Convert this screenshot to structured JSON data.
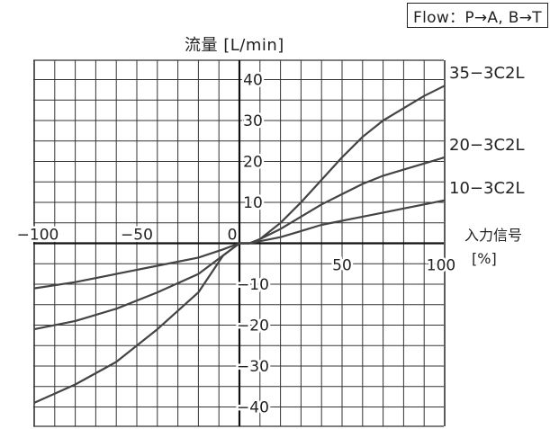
{
  "flow_note": "Flow：P→A, B→T",
  "chart_data": {
    "type": "line",
    "ylabel": "流量 [L/min]",
    "xlabel": "入力信号",
    "xlabel_unit": "[%]",
    "xlim": [
      -100,
      100
    ],
    "ylim": [
      -50,
      50
    ],
    "grid": true,
    "x_ticks": [
      {
        "value": -100,
        "label": "−100"
      },
      {
        "value": -50,
        "label": "−50"
      },
      {
        "value": 0,
        "label": "0"
      },
      {
        "value": 50,
        "label": "50"
      },
      {
        "value": 100,
        "label": "100"
      }
    ],
    "y_ticks": [
      {
        "value": 40,
        "label": "40"
      },
      {
        "value": 30,
        "label": "30"
      },
      {
        "value": 20,
        "label": "20"
      },
      {
        "value": 10,
        "label": "10"
      },
      {
        "value": -10,
        "label": "−10"
      },
      {
        "value": -20,
        "label": "−20"
      },
      {
        "value": -30,
        "label": "−30"
      },
      {
        "value": -40,
        "label": "−40"
      }
    ],
    "series": [
      {
        "name": "35−3C2L",
        "x": [
          -100,
          -80,
          -60,
          -40,
          -20,
          -8,
          0,
          5,
          10,
          20,
          30,
          40,
          50,
          60,
          70,
          80,
          90,
          100
        ],
        "y": [
          -39,
          -34.5,
          -29,
          -21,
          -12,
          -3,
          0,
          0,
          1,
          5,
          10,
          15.5,
          21,
          26,
          30,
          33,
          36,
          38.5
        ]
      },
      {
        "name": "20−3C2L",
        "x": [
          -100,
          -80,
          -60,
          -40,
          -20,
          -8,
          0,
          5,
          10,
          20,
          30,
          40,
          50,
          60,
          70,
          80,
          90,
          100
        ],
        "y": [
          -21,
          -19,
          -16,
          -12,
          -7.5,
          -3,
          0,
          0,
          1,
          3.5,
          6.5,
          9.5,
          12,
          14.5,
          16.5,
          18,
          19.5,
          21
        ]
      },
      {
        "name": "10−3C2L",
        "x": [
          -100,
          -80,
          -60,
          -40,
          -20,
          -8,
          0,
          5,
          10,
          20,
          30,
          40,
          50,
          60,
          70,
          80,
          90,
          100
        ],
        "y": [
          -11,
          -9.5,
          -7.5,
          -5.5,
          -3.5,
          -1.5,
          0,
          0,
          0.5,
          1.5,
          3,
          4.5,
          5.5,
          6.5,
          7.5,
          8.5,
          9.5,
          10.5
        ]
      }
    ]
  }
}
